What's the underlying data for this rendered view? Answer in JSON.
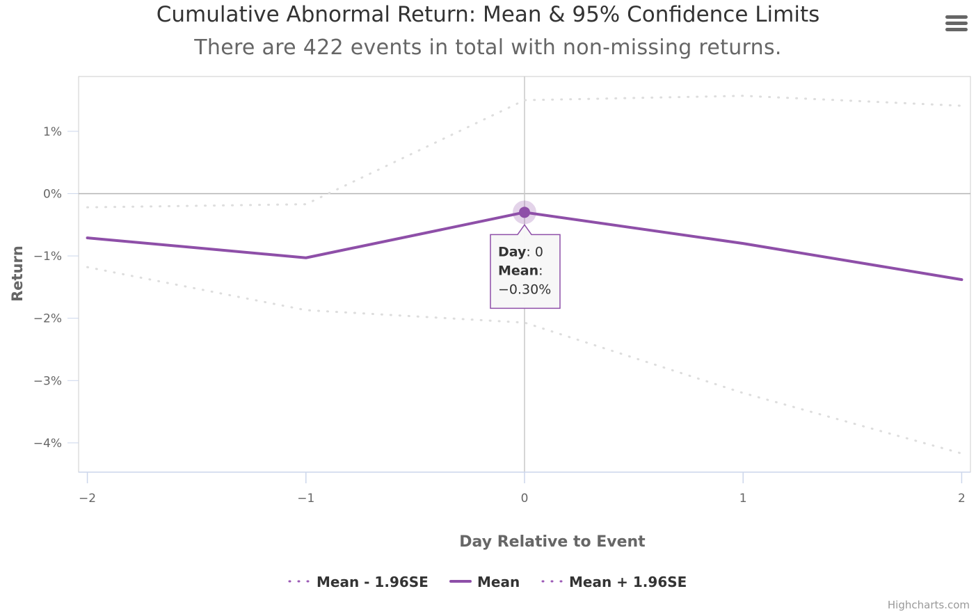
{
  "chart_data": {
    "type": "line",
    "title": "Cumulative Abnormal Return: Mean & 95% Confidence Limits",
    "subtitle": "There are 422 events in total with non-missing returns.",
    "xlabel": "Day Relative to Event",
    "ylabel": "Return",
    "x": [
      -2,
      -1,
      0,
      1,
      2
    ],
    "x_tick_labels": [
      "−2",
      "−1",
      "0",
      "1",
      "2"
    ],
    "y_tick_labels": [
      "1%",
      "0%",
      "−1%",
      "−2%",
      "−3%",
      "−4%"
    ],
    "y_ticks": [
      1,
      0,
      -1,
      -2,
      -3,
      -4
    ],
    "ylim": [
      -4.47,
      1.88
    ],
    "xlim": [
      -2.04,
      2.04
    ],
    "grid": false,
    "legend_position": "bottom-center",
    "series": [
      {
        "name": "Mean - 1.96SE",
        "values": [
          -1.18,
          -1.87,
          -2.07,
          -3.2,
          -4.17
        ],
        "style": "dotted",
        "color": "#dddddd",
        "legend_color": "#9b59b6"
      },
      {
        "name": "Mean",
        "values": [
          -0.71,
          -1.03,
          -0.3,
          -0.8,
          -1.38
        ],
        "style": "solid",
        "color": "#8e4fa8",
        "legend_color": "#8e4fa8"
      },
      {
        "name": "Mean + 1.96SE",
        "values": [
          -0.22,
          -0.17,
          1.5,
          1.57,
          1.41
        ],
        "style": "dotted",
        "color": "#dddddd",
        "legend_color": "#9b59b6"
      }
    ],
    "tooltip": {
      "x_label": "Day",
      "x_value": "0",
      "y_label": "Mean",
      "y_value": "−0.30%",
      "point_index": 2,
      "series_index": 1
    },
    "crosshair_x": 0,
    "zero_line": 0
  },
  "credits": "Highcharts.com",
  "menu_icon": "hamburger-menu-icon"
}
